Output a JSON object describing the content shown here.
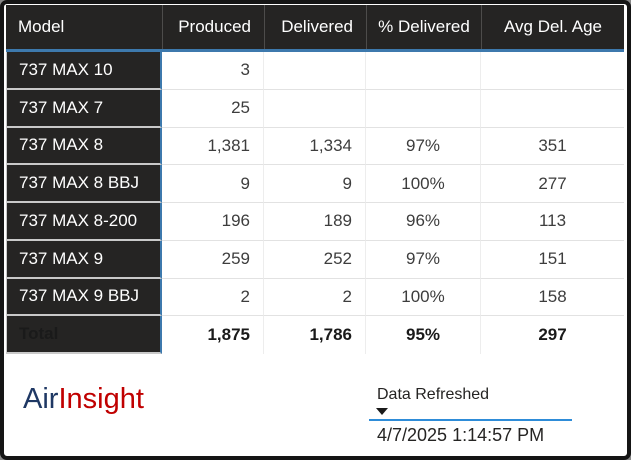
{
  "colors": {
    "header_bg": "#252423",
    "header_text": "#ffffff",
    "accent": "#3d79ad",
    "slicer_accent": "#2e8cd8",
    "body_text": "#3d3d3d",
    "logo_navy": "#1f3864",
    "logo_red": "#c00000"
  },
  "table": {
    "columns": [
      "Model",
      "Produced",
      "Delivered",
      "% Delivered",
      "Avg Del. Age"
    ],
    "rows": [
      {
        "model": "737 MAX 10",
        "produced": "3",
        "delivered": "",
        "pct": "",
        "age": ""
      },
      {
        "model": "737 MAX 7",
        "produced": "25",
        "delivered": "",
        "pct": "",
        "age": ""
      },
      {
        "model": "737 MAX 8",
        "produced": "1,381",
        "delivered": "1,334",
        "pct": "97%",
        "age": "351"
      },
      {
        "model": "737 MAX 8 BBJ",
        "produced": "9",
        "delivered": "9",
        "pct": "100%",
        "age": "277"
      },
      {
        "model": "737 MAX 8-200",
        "produced": "196",
        "delivered": "189",
        "pct": "96%",
        "age": "113"
      },
      {
        "model": "737 MAX 9",
        "produced": "259",
        "delivered": "252",
        "pct": "97%",
        "age": "151"
      },
      {
        "model": "737 MAX 9 BBJ",
        "produced": "2",
        "delivered": "2",
        "pct": "100%",
        "age": "158"
      },
      {
        "model": "Total",
        "produced": "1,875",
        "delivered": "1,786",
        "pct": "95%",
        "age": "297"
      }
    ]
  },
  "logo": {
    "air": "Air",
    "insight": "Insight"
  },
  "slicer": {
    "label": "Data Refreshed",
    "value": "4/7/2025 1:14:57 PM",
    "dropdown_icon": "caret-down"
  }
}
